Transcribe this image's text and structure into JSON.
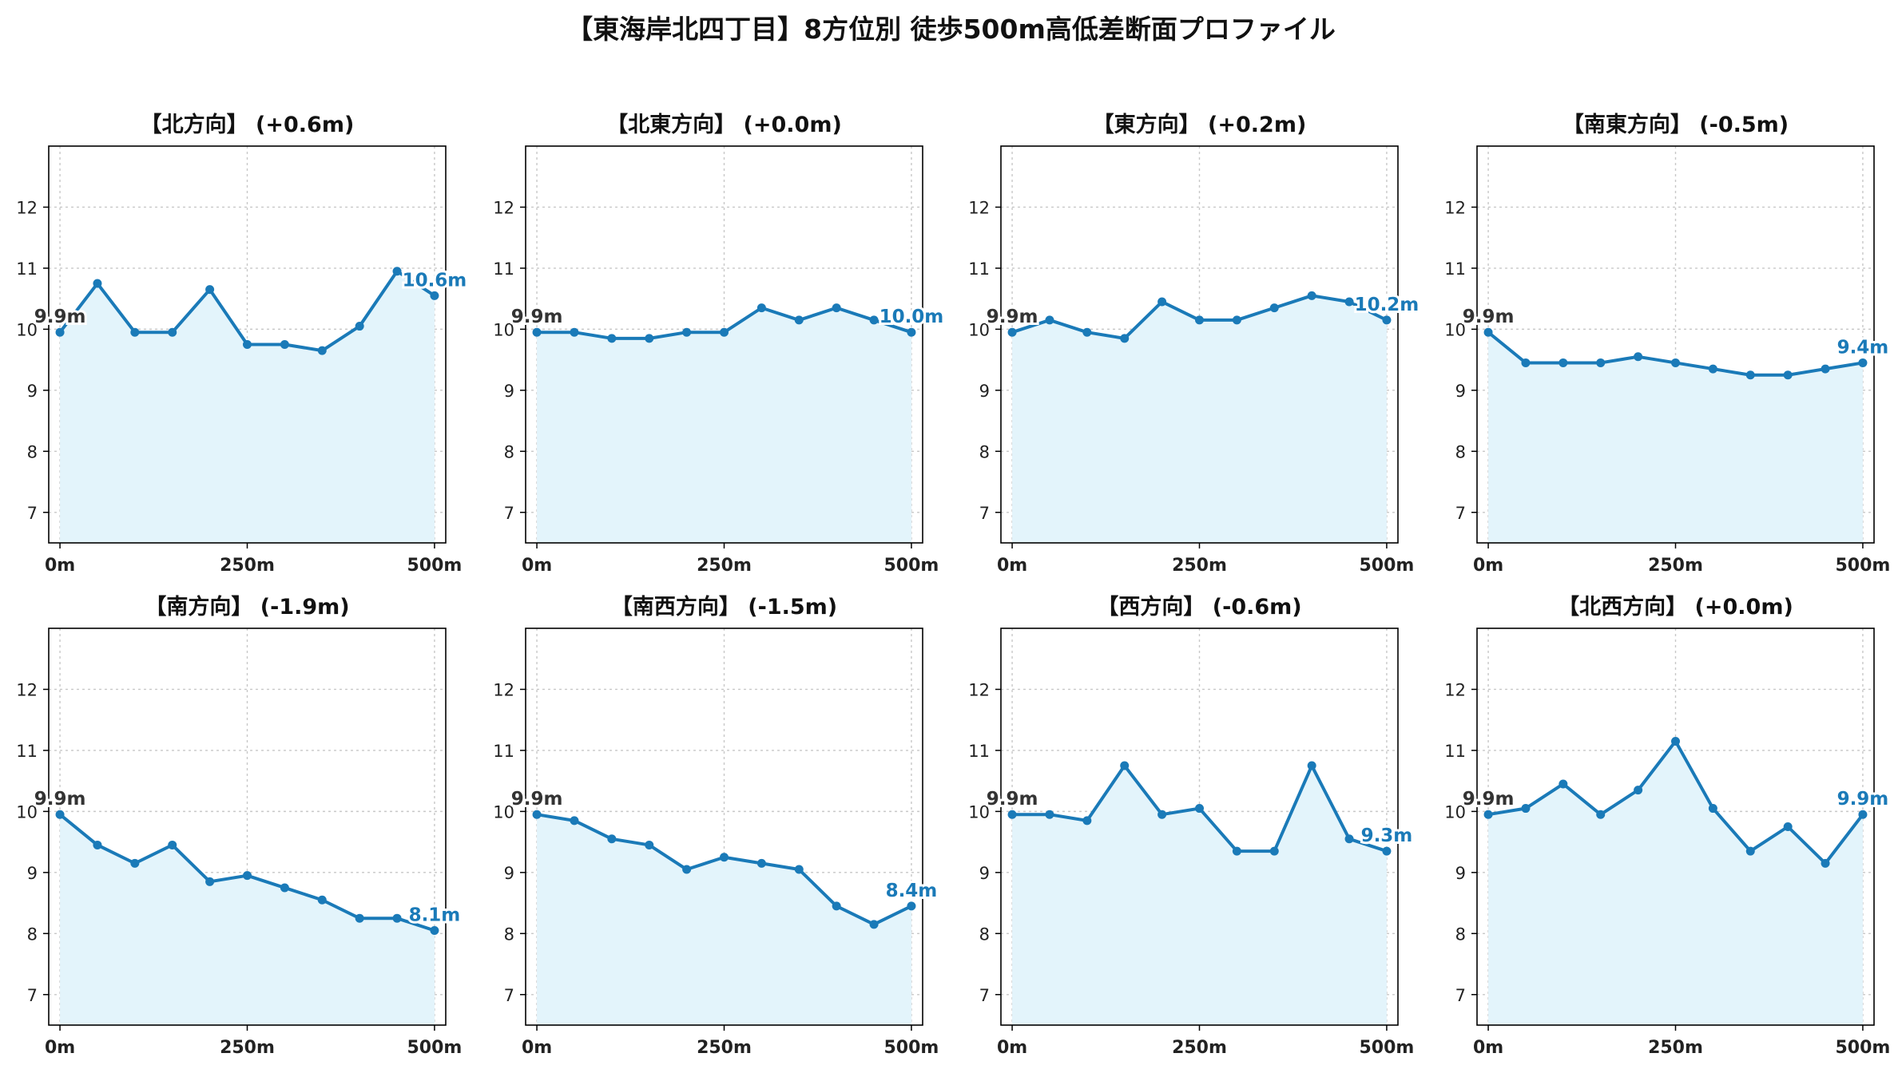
{
  "figure_title": "【東海岸北四丁目】8方位別 徒歩500m高低差断面プロファイル",
  "colors": {
    "line": "#1a7ab8",
    "fill": "#e3f4fb",
    "start_label": "#333333",
    "end_label": "#1a7ab8",
    "grid": "#c8c8c8",
    "axis": "#000000"
  },
  "chart_data": [
    {
      "type": "area",
      "title": "【北方向】 (+0.6m)",
      "x": [
        0,
        50,
        100,
        150,
        200,
        250,
        300,
        350,
        400,
        450,
        500
      ],
      "xticks": [
        0,
        250,
        500
      ],
      "xtick_labels": [
        "0m",
        "250m",
        "500m"
      ],
      "y": [
        9.95,
        10.75,
        9.95,
        9.95,
        10.65,
        9.75,
        9.75,
        9.65,
        10.05,
        10.95,
        10.55
      ],
      "yticks": [
        7,
        8,
        9,
        10,
        11,
        12
      ],
      "ylim": [
        6.5,
        13.0
      ],
      "xlim": [
        -15,
        515
      ],
      "start_label": "9.9m",
      "end_label": "10.6m",
      "grid": true
    },
    {
      "type": "area",
      "title": "【北東方向】 (+0.0m)",
      "x": [
        0,
        50,
        100,
        150,
        200,
        250,
        300,
        350,
        400,
        450,
        500
      ],
      "xticks": [
        0,
        250,
        500
      ],
      "xtick_labels": [
        "0m",
        "250m",
        "500m"
      ],
      "y": [
        9.95,
        9.95,
        9.85,
        9.85,
        9.95,
        9.95,
        10.35,
        10.15,
        10.35,
        10.15,
        9.95
      ],
      "yticks": [
        7,
        8,
        9,
        10,
        11,
        12
      ],
      "ylim": [
        6.5,
        13.0
      ],
      "xlim": [
        -15,
        515
      ],
      "start_label": "9.9m",
      "end_label": "10.0m",
      "grid": true
    },
    {
      "type": "area",
      "title": "【東方向】 (+0.2m)",
      "x": [
        0,
        50,
        100,
        150,
        200,
        250,
        300,
        350,
        400,
        450,
        500
      ],
      "xticks": [
        0,
        250,
        500
      ],
      "xtick_labels": [
        "0m",
        "250m",
        "500m"
      ],
      "y": [
        9.95,
        10.15,
        9.95,
        9.85,
        10.45,
        10.15,
        10.15,
        10.35,
        10.55,
        10.45,
        10.15
      ],
      "yticks": [
        7,
        8,
        9,
        10,
        11,
        12
      ],
      "ylim": [
        6.5,
        13.0
      ],
      "xlim": [
        -15,
        515
      ],
      "start_label": "9.9m",
      "end_label": "10.2m",
      "grid": true
    },
    {
      "type": "area",
      "title": "【南東方向】 (-0.5m)",
      "x": [
        0,
        50,
        100,
        150,
        200,
        250,
        300,
        350,
        400,
        450,
        500
      ],
      "xticks": [
        0,
        250,
        500
      ],
      "xtick_labels": [
        "0m",
        "250m",
        "500m"
      ],
      "y": [
        9.95,
        9.45,
        9.45,
        9.45,
        9.55,
        9.45,
        9.35,
        9.25,
        9.25,
        9.35,
        9.45
      ],
      "yticks": [
        7,
        8,
        9,
        10,
        11,
        12
      ],
      "ylim": [
        6.5,
        13.0
      ],
      "xlim": [
        -15,
        515
      ],
      "start_label": "9.9m",
      "end_label": "9.4m",
      "grid": true
    },
    {
      "type": "area",
      "title": "【南方向】 (-1.9m)",
      "x": [
        0,
        50,
        100,
        150,
        200,
        250,
        300,
        350,
        400,
        450,
        500
      ],
      "xticks": [
        0,
        250,
        500
      ],
      "xtick_labels": [
        "0m",
        "250m",
        "500m"
      ],
      "y": [
        9.95,
        9.45,
        9.15,
        9.45,
        8.85,
        8.95,
        8.75,
        8.55,
        8.25,
        8.25,
        8.05
      ],
      "yticks": [
        7,
        8,
        9,
        10,
        11,
        12
      ],
      "ylim": [
        6.5,
        13.0
      ],
      "xlim": [
        -15,
        515
      ],
      "start_label": "9.9m",
      "end_label": "8.1m",
      "grid": true
    },
    {
      "type": "area",
      "title": "【南西方向】 (-1.5m)",
      "x": [
        0,
        50,
        100,
        150,
        200,
        250,
        300,
        350,
        400,
        450,
        500
      ],
      "xticks": [
        0,
        250,
        500
      ],
      "xtick_labels": [
        "0m",
        "250m",
        "500m"
      ],
      "y": [
        9.95,
        9.85,
        9.55,
        9.45,
        9.05,
        9.25,
        9.15,
        9.05,
        8.45,
        8.15,
        8.45
      ],
      "yticks": [
        7,
        8,
        9,
        10,
        11,
        12
      ],
      "ylim": [
        6.5,
        13.0
      ],
      "xlim": [
        -15,
        515
      ],
      "start_label": "9.9m",
      "end_label": "8.4m",
      "grid": true
    },
    {
      "type": "area",
      "title": "【西方向】 (-0.6m)",
      "x": [
        0,
        50,
        100,
        150,
        200,
        250,
        300,
        350,
        400,
        450,
        500
      ],
      "xticks": [
        0,
        250,
        500
      ],
      "xtick_labels": [
        "0m",
        "250m",
        "500m"
      ],
      "y": [
        9.95,
        9.95,
        9.85,
        10.75,
        9.95,
        10.05,
        9.35,
        9.35,
        10.75,
        9.55,
        9.35
      ],
      "yticks": [
        7,
        8,
        9,
        10,
        11,
        12
      ],
      "ylim": [
        6.5,
        13.0
      ],
      "xlim": [
        -15,
        515
      ],
      "start_label": "9.9m",
      "end_label": "9.3m",
      "grid": true
    },
    {
      "type": "area",
      "title": "【北西方向】 (+0.0m)",
      "x": [
        0,
        50,
        100,
        150,
        200,
        250,
        300,
        350,
        400,
        450,
        500
      ],
      "xticks": [
        0,
        250,
        500
      ],
      "xtick_labels": [
        "0m",
        "250m",
        "500m"
      ],
      "y": [
        9.95,
        10.05,
        10.45,
        9.95,
        10.35,
        11.15,
        10.05,
        9.35,
        9.75,
        9.15,
        9.95
      ],
      "yticks": [
        7,
        8,
        9,
        10,
        11,
        12
      ],
      "ylim": [
        6.5,
        13.0
      ],
      "xlim": [
        -15,
        515
      ],
      "start_label": "9.9m",
      "end_label": "9.9m",
      "grid": true
    }
  ]
}
